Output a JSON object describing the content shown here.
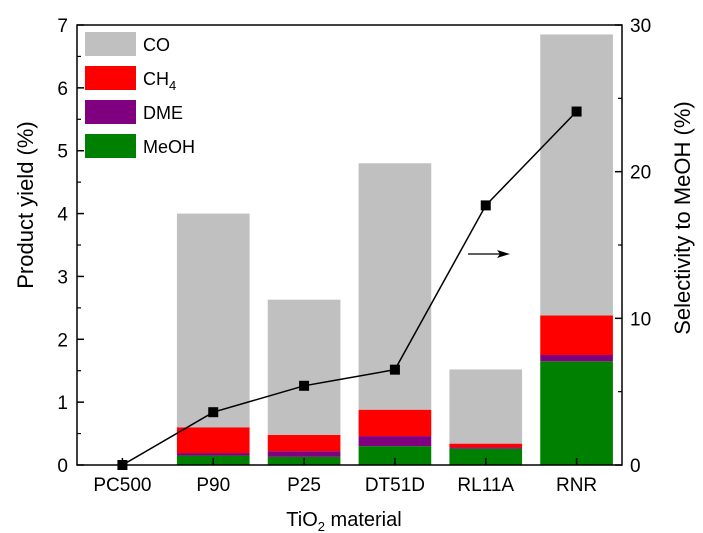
{
  "chart_data": {
    "type": "bar",
    "stacked": true,
    "categories": [
      "PC500",
      "P90",
      "P25",
      "DT51D",
      "RL11A",
      "RNR"
    ],
    "series": [
      {
        "name": "MeOH",
        "color": "#008000",
        "values": [
          0.0,
          0.15,
          0.13,
          0.3,
          0.26,
          1.65
        ]
      },
      {
        "name": "DME",
        "color": "#800080",
        "values": [
          0.0,
          0.04,
          0.09,
          0.16,
          0.02,
          0.1
        ]
      },
      {
        "name": "CH",
        "name_sub": "4",
        "color": "#ff0000",
        "values": [
          0.0,
          0.41,
          0.26,
          0.42,
          0.06,
          0.63
        ]
      },
      {
        "name": "CO",
        "color": "#c0c0c0",
        "values": [
          0.0,
          3.4,
          2.15,
          3.92,
          1.18,
          4.47
        ]
      }
    ],
    "line_series": {
      "name": "Selectivity to MeOH",
      "axis": "right",
      "marker": "square",
      "values": [
        0.0,
        3.6,
        5.4,
        6.5,
        17.7,
        24.1
      ]
    },
    "ylabel": "Product yield (%)",
    "ylim": [
      0,
      7
    ],
    "yticks": [
      "0",
      "1",
      "2",
      "3",
      "4",
      "5",
      "6",
      "7"
    ],
    "y2label": "Selectivity to MeOH (%)",
    "y2lim": [
      0,
      30
    ],
    "y2ticks": [
      "0",
      "10",
      "20",
      "30"
    ],
    "xlabel_main": "TiO",
    "xlabel_sub": "2",
    "xlabel_tail": " material",
    "legend_position": "top-left",
    "arrow_annotation": "right-pointing arrow toward right axis"
  }
}
